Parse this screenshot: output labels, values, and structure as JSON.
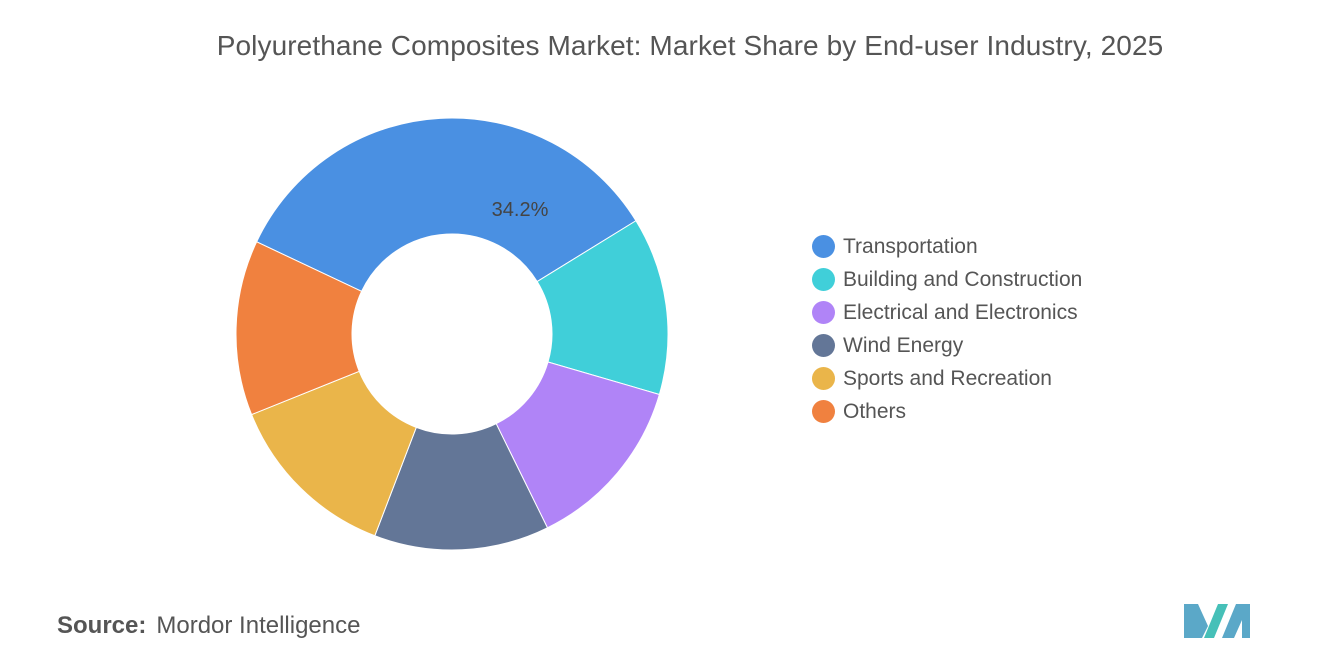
{
  "title": "Polyurethane Composites Market: Market Share by End-user Industry, 2025",
  "source": {
    "label": "Source:",
    "value": "Mordor Intelligence"
  },
  "chart_data": {
    "type": "pie",
    "variant": "donut",
    "title": "Polyurethane Composites Market: Market Share by End-user Industry, 2025",
    "legend_position": "right",
    "categories": [
      "Transportation",
      "Building and Construction",
      "Electrical and Electronics",
      "Wind Energy",
      "Sports and Recreation",
      "Others"
    ],
    "values": [
      34.2,
      13.3,
      13.2,
      13.1,
      13.1,
      13.1
    ],
    "colors": [
      "#4a90e2",
      "#40cfd9",
      "#b084f7",
      "#637697",
      "#eab54a",
      "#f0813f"
    ],
    "data_labels": [
      "34.2%",
      "",
      "",
      "",
      "",
      ""
    ]
  },
  "logo": {
    "icon": "mordor-intelligence-logo-icon",
    "colors": [
      "#5ba8c8",
      "#46c0b8"
    ]
  }
}
